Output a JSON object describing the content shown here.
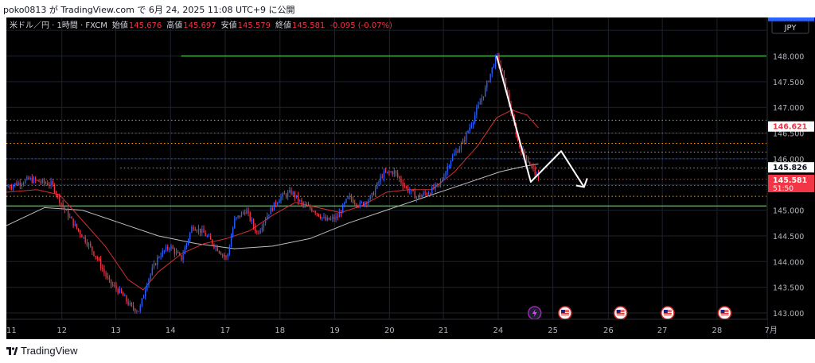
{
  "header": {
    "attribution": "poko0813 が TradingView.com で 6月 24, 2025 11:08 UTC+9 に公開"
  },
  "legend": {
    "symbol": "米ドル／円 · 1時間 · FXCM",
    "open_label": "始値",
    "open": "145.676",
    "high_label": "高値",
    "high": "145.697",
    "low_label": "安値",
    "low": "145.579",
    "close_label": "終値",
    "close": "145.581",
    "change": "-0.095 (-0.07%)"
  },
  "currency": "JPY",
  "footer": {
    "brand": "TradingView"
  },
  "colors": {
    "background": "#000000",
    "up": "#2962ff",
    "down": "#f23645",
    "ma_short": "#d32f2f",
    "ma_long": "#bdbdbd",
    "arrow": "#ffffff",
    "level_green": "#4caf50",
    "level_blue": "#2962ff",
    "level_magenta": "#ab47bc",
    "level_orange": "#ff9800",
    "level_green_dotted": "#66bb6a"
  },
  "chart_data": {
    "type": "candlestick",
    "ylim": [
      143.0,
      148.75
    ],
    "y_ticks": [
      143.0,
      143.5,
      144.0,
      144.5,
      145.0,
      145.5,
      146.0,
      146.5,
      147.0,
      147.5,
      148.0,
      148.5
    ],
    "y_tick_labels": [
      "143.000",
      "143.500",
      "144.000",
      "144.500",
      "145.000",
      "145.500",
      "146.000",
      "146.500",
      "147.000",
      "147.500",
      "148.000",
      "148.500"
    ],
    "x_ticks": [
      {
        "label": "11",
        "pos": 0.0
      },
      {
        "label": "12",
        "pos": 0.073
      },
      {
        "label": "13",
        "pos": 0.144
      },
      {
        "label": "14",
        "pos": 0.216
      },
      {
        "label": "17",
        "pos": 0.288
      },
      {
        "label": "18",
        "pos": 0.36
      },
      {
        "label": "19",
        "pos": 0.432
      },
      {
        "label": "20",
        "pos": 0.504
      },
      {
        "label": "21",
        "pos": 0.575
      },
      {
        "label": "24",
        "pos": 0.647
      },
      {
        "label": "25",
        "pos": 0.719
      },
      {
        "label": "26",
        "pos": 0.792
      },
      {
        "label": "27",
        "pos": 0.863
      },
      {
        "label": "28",
        "pos": 0.935
      },
      {
        "label": "7月",
        "pos": 1.006
      }
    ],
    "price_path": [
      [
        0.0,
        145.45
      ],
      [
        0.03,
        145.6
      ],
      [
        0.06,
        145.5
      ],
      [
        0.065,
        145.35
      ],
      [
        0.075,
        145.05
      ],
      [
        0.09,
        144.7
      ],
      [
        0.105,
        144.4
      ],
      [
        0.12,
        144.05
      ],
      [
        0.135,
        143.6
      ],
      [
        0.15,
        143.4
      ],
      [
        0.165,
        143.1
      ],
      [
        0.175,
        143.05
      ],
      [
        0.185,
        143.6
      ],
      [
        0.2,
        144.1
      ],
      [
        0.215,
        144.3
      ],
      [
        0.23,
        144.05
      ],
      [
        0.245,
        144.7
      ],
      [
        0.26,
        144.55
      ],
      [
        0.275,
        144.3
      ],
      [
        0.29,
        144.05
      ],
      [
        0.3,
        144.8
      ],
      [
        0.315,
        145.0
      ],
      [
        0.33,
        144.55
      ],
      [
        0.345,
        144.95
      ],
      [
        0.36,
        145.25
      ],
      [
        0.375,
        145.35
      ],
      [
        0.39,
        145.1
      ],
      [
        0.405,
        145.0
      ],
      [
        0.42,
        144.8
      ],
      [
        0.435,
        144.85
      ],
      [
        0.45,
        145.25
      ],
      [
        0.465,
        145.1
      ],
      [
        0.48,
        145.25
      ],
      [
        0.495,
        145.7
      ],
      [
        0.51,
        145.75
      ],
      [
        0.525,
        145.45
      ],
      [
        0.54,
        145.25
      ],
      [
        0.555,
        145.35
      ],
      [
        0.57,
        145.5
      ],
      [
        0.585,
        146.0
      ],
      [
        0.6,
        146.3
      ],
      [
        0.615,
        146.8
      ],
      [
        0.63,
        147.35
      ],
      [
        0.64,
        147.8
      ],
      [
        0.645,
        148.0
      ],
      [
        0.652,
        147.7
      ],
      [
        0.66,
        147.2
      ],
      [
        0.667,
        146.7
      ],
      [
        0.675,
        146.25
      ],
      [
        0.685,
        146.0
      ],
      [
        0.695,
        145.75
      ],
      [
        0.7,
        145.58
      ]
    ],
    "candle_count": 310,
    "ma_short": [
      [
        0.0,
        145.35
      ],
      [
        0.04,
        145.4
      ],
      [
        0.07,
        145.3
      ],
      [
        0.1,
        144.8
      ],
      [
        0.13,
        144.3
      ],
      [
        0.16,
        143.65
      ],
      [
        0.18,
        143.45
      ],
      [
        0.2,
        143.8
      ],
      [
        0.23,
        144.15
      ],
      [
        0.26,
        144.35
      ],
      [
        0.29,
        144.45
      ],
      [
        0.32,
        144.6
      ],
      [
        0.35,
        144.9
      ],
      [
        0.38,
        145.15
      ],
      [
        0.41,
        145.05
      ],
      [
        0.44,
        144.95
      ],
      [
        0.47,
        145.1
      ],
      [
        0.5,
        145.35
      ],
      [
        0.53,
        145.4
      ],
      [
        0.56,
        145.4
      ],
      [
        0.59,
        145.75
      ],
      [
        0.62,
        146.25
      ],
      [
        0.645,
        146.8
      ],
      [
        0.665,
        146.95
      ],
      [
        0.685,
        146.85
      ],
      [
        0.7,
        146.6
      ]
    ],
    "ma_long": [
      [
        0.0,
        144.7
      ],
      [
        0.05,
        145.05
      ],
      [
        0.1,
        145.0
      ],
      [
        0.15,
        144.75
      ],
      [
        0.2,
        144.5
      ],
      [
        0.25,
        144.35
      ],
      [
        0.3,
        144.25
      ],
      [
        0.35,
        144.3
      ],
      [
        0.4,
        144.45
      ],
      [
        0.45,
        144.75
      ],
      [
        0.5,
        145.0
      ],
      [
        0.55,
        145.25
      ],
      [
        0.6,
        145.5
      ],
      [
        0.65,
        145.75
      ],
      [
        0.68,
        145.85
      ],
      [
        0.7,
        145.9
      ]
    ],
    "horizontal_levels": [
      {
        "price": 148.77,
        "style": "solid",
        "color": "#2962ff",
        "from": 0.0,
        "to": 1.0
      },
      {
        "price": 148.0,
        "style": "solid",
        "color": "#4caf50",
        "from": 0.23,
        "to": 1.0
      },
      {
        "price": 146.75,
        "style": "dotted",
        "color": "#66bb6a",
        "from": 0.0,
        "to": 1.0
      },
      {
        "price": 146.5,
        "style": "dotted",
        "color": "#ab47bc",
        "from": 0.0,
        "to": 1.0
      },
      {
        "price": 146.3,
        "style": "dotted",
        "color": "#ff9800",
        "from": 0.0,
        "to": 1.0
      },
      {
        "price": 146.13,
        "style": "dotted",
        "color": "#ff9800",
        "from": 0.65,
        "to": 1.0
      },
      {
        "price": 146.0,
        "style": "dotted",
        "color": "#2962ff",
        "from": 0.0,
        "to": 1.0
      },
      {
        "price": 145.82,
        "style": "dotted",
        "color": "#66bb6a",
        "from": 0.15,
        "to": 1.0
      },
      {
        "price": 145.6,
        "style": "dotted",
        "color": "#f23645",
        "from": 0.0,
        "to": 1.0
      },
      {
        "price": 145.48,
        "style": "dotted",
        "color": "#ab47bc",
        "from": 0.0,
        "to": 1.0
      },
      {
        "price": 145.27,
        "style": "dotted",
        "color": "#ff9800",
        "from": 0.0,
        "to": 1.0
      },
      {
        "price": 145.08,
        "style": "solid",
        "color": "#4caf50",
        "from": 0.0,
        "to": 1.0
      }
    ],
    "arrow_path": [
      [
        0.645,
        148.0
      ],
      [
        0.69,
        145.55
      ],
      [
        0.73,
        146.15
      ],
      [
        0.76,
        145.45
      ]
    ],
    "price_labels": [
      {
        "price": 148.77,
        "text": "",
        "bg": "#2962ff",
        "fg": "#ffffff"
      },
      {
        "price": 146.621,
        "text": "146.621",
        "bg": "#ffffff",
        "fg": "#f23645"
      },
      {
        "price": 145.826,
        "text": "145.826",
        "bg": "#ffffff",
        "fg": "#131722"
      },
      {
        "price": 145.581,
        "text": "145.581",
        "bg": "#f23645",
        "fg": "#ffffff",
        "sub": "51:50"
      }
    ],
    "event_icons": [
      {
        "pos": 0.695,
        "kind": "lightning"
      },
      {
        "pos": 0.735,
        "kind": "us-flag"
      },
      {
        "pos": 0.808,
        "kind": "us-flag"
      },
      {
        "pos": 0.87,
        "kind": "us-flag"
      },
      {
        "pos": 0.945,
        "kind": "us-flag"
      }
    ]
  }
}
